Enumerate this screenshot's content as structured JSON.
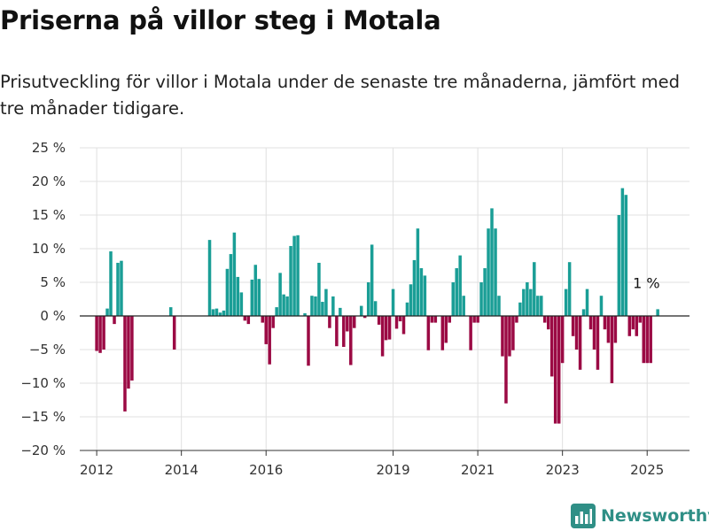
{
  "title": "Priserna på villor steg i Motala",
  "subtitle": "Prisutveckling för villor i Motala under de senaste tre månaderna, jämfört med tre månader tidigare.",
  "brand": {
    "name": "Newsworthy",
    "color": "#2f8f86"
  },
  "colors": {
    "positive": "#1a9e96",
    "negative": "#9b0a44",
    "grid": "#e0e0e0",
    "zero": "#222222"
  },
  "chart_data": {
    "type": "bar",
    "ylim": [
      -20,
      25
    ],
    "xlim": [
      2011.6,
      2026.0
    ],
    "y_ticks": [
      -20,
      -15,
      -10,
      -5,
      0,
      5,
      10,
      15,
      20,
      25
    ],
    "y_tick_labels": [
      "−20 %",
      "−15 %",
      "−10 %",
      "−5 %",
      "0 %",
      "5 %",
      "10 %",
      "15 %",
      "20 %",
      "25 %"
    ],
    "x_ticks": [
      2012,
      2014,
      2016,
      2019,
      2021,
      2023,
      2025
    ],
    "x_tick_labels": [
      "2012",
      "2014",
      "2016",
      "2019",
      "2021",
      "2023",
      "2025"
    ],
    "grid": true,
    "annotation": {
      "text": "1 %",
      "x": 2025.25,
      "y": 1
    },
    "points": [
      {
        "x": 2012.0,
        "y": -5.2
      },
      {
        "x": 2012.083,
        "y": -5.5
      },
      {
        "x": 2012.167,
        "y": -5.0
      },
      {
        "x": 2012.25,
        "y": 1.1
      },
      {
        "x": 2012.333,
        "y": 9.6
      },
      {
        "x": 2012.417,
        "y": -1.2
      },
      {
        "x": 2012.5,
        "y": 7.9
      },
      {
        "x": 2012.583,
        "y": 8.2
      },
      {
        "x": 2012.667,
        "y": -14.2
      },
      {
        "x": 2012.75,
        "y": -10.8
      },
      {
        "x": 2012.833,
        "y": -9.6
      },
      {
        "x": 2013.75,
        "y": 1.3
      },
      {
        "x": 2013.833,
        "y": -5.0
      },
      {
        "x": 2014.667,
        "y": 11.3
      },
      {
        "x": 2014.75,
        "y": 1.0
      },
      {
        "x": 2014.833,
        "y": 1.1
      },
      {
        "x": 2014.917,
        "y": 0.5
      },
      {
        "x": 2015.0,
        "y": 0.8
      },
      {
        "x": 2015.083,
        "y": 7.0
      },
      {
        "x": 2015.167,
        "y": 9.2
      },
      {
        "x": 2015.25,
        "y": 12.4
      },
      {
        "x": 2015.333,
        "y": 5.8
      },
      {
        "x": 2015.417,
        "y": 3.5
      },
      {
        "x": 2015.5,
        "y": -0.7
      },
      {
        "x": 2015.583,
        "y": -1.2
      },
      {
        "x": 2015.667,
        "y": 5.4
      },
      {
        "x": 2015.75,
        "y": 7.6
      },
      {
        "x": 2015.833,
        "y": 5.5
      },
      {
        "x": 2015.917,
        "y": -1.0
      },
      {
        "x": 2016.0,
        "y": -4.2
      },
      {
        "x": 2016.083,
        "y": -7.2
      },
      {
        "x": 2016.167,
        "y": -1.8
      },
      {
        "x": 2016.25,
        "y": 1.3
      },
      {
        "x": 2016.333,
        "y": 6.4
      },
      {
        "x": 2016.417,
        "y": 3.2
      },
      {
        "x": 2016.5,
        "y": 2.9
      },
      {
        "x": 2016.583,
        "y": 10.4
      },
      {
        "x": 2016.667,
        "y": 11.9
      },
      {
        "x": 2016.75,
        "y": 12.0
      },
      {
        "x": 2016.917,
        "y": 0.4
      },
      {
        "x": 2017.0,
        "y": -7.4
      },
      {
        "x": 2017.083,
        "y": 3.0
      },
      {
        "x": 2017.167,
        "y": 2.9
      },
      {
        "x": 2017.25,
        "y": 7.9
      },
      {
        "x": 2017.333,
        "y": 2.1
      },
      {
        "x": 2017.417,
        "y": 4.0
      },
      {
        "x": 2017.5,
        "y": -1.8
      },
      {
        "x": 2017.583,
        "y": 2.9
      },
      {
        "x": 2017.667,
        "y": -4.5
      },
      {
        "x": 2017.75,
        "y": 1.2
      },
      {
        "x": 2017.833,
        "y": -4.6
      },
      {
        "x": 2017.917,
        "y": -2.3
      },
      {
        "x": 2018.0,
        "y": -7.3
      },
      {
        "x": 2018.083,
        "y": -1.8
      },
      {
        "x": 2018.25,
        "y": 1.5
      },
      {
        "x": 2018.333,
        "y": -0.3
      },
      {
        "x": 2018.417,
        "y": 5.0
      },
      {
        "x": 2018.5,
        "y": 10.6
      },
      {
        "x": 2018.583,
        "y": 2.2
      },
      {
        "x": 2018.667,
        "y": -1.3
      },
      {
        "x": 2018.75,
        "y": -6.0
      },
      {
        "x": 2018.833,
        "y": -3.6
      },
      {
        "x": 2018.917,
        "y": -3.5
      },
      {
        "x": 2019.0,
        "y": 4.0
      },
      {
        "x": 2019.083,
        "y": -1.9
      },
      {
        "x": 2019.167,
        "y": -0.8
      },
      {
        "x": 2019.25,
        "y": -2.7
      },
      {
        "x": 2019.333,
        "y": 2.0
      },
      {
        "x": 2019.417,
        "y": 4.7
      },
      {
        "x": 2019.5,
        "y": 8.3
      },
      {
        "x": 2019.583,
        "y": 13.0
      },
      {
        "x": 2019.667,
        "y": 7.1
      },
      {
        "x": 2019.75,
        "y": 6.0
      },
      {
        "x": 2019.833,
        "y": -5.1
      },
      {
        "x": 2019.917,
        "y": -1.0
      },
      {
        "x": 2020.0,
        "y": -1.0
      },
      {
        "x": 2020.167,
        "y": -5.1
      },
      {
        "x": 2020.25,
        "y": -4.0
      },
      {
        "x": 2020.333,
        "y": -1.0
      },
      {
        "x": 2020.417,
        "y": 5.0
      },
      {
        "x": 2020.5,
        "y": 7.1
      },
      {
        "x": 2020.583,
        "y": 9.0
      },
      {
        "x": 2020.667,
        "y": 3.0
      },
      {
        "x": 2020.833,
        "y": -5.1
      },
      {
        "x": 2020.917,
        "y": -1.0
      },
      {
        "x": 2021.0,
        "y": -1.0
      },
      {
        "x": 2021.083,
        "y": 5.0
      },
      {
        "x": 2021.167,
        "y": 7.1
      },
      {
        "x": 2021.25,
        "y": 13.0
      },
      {
        "x": 2021.333,
        "y": 16.0
      },
      {
        "x": 2021.417,
        "y": 13.0
      },
      {
        "x": 2021.5,
        "y": 3.0
      },
      {
        "x": 2021.583,
        "y": -6.0
      },
      {
        "x": 2021.667,
        "y": -13.0
      },
      {
        "x": 2021.75,
        "y": -6.0
      },
      {
        "x": 2021.833,
        "y": -5.1
      },
      {
        "x": 2021.917,
        "y": -1.0
      },
      {
        "x": 2022.0,
        "y": 2.0
      },
      {
        "x": 2022.083,
        "y": 4.0
      },
      {
        "x": 2022.167,
        "y": 5.0
      },
      {
        "x": 2022.25,
        "y": 4.0
      },
      {
        "x": 2022.333,
        "y": 8.0
      },
      {
        "x": 2022.417,
        "y": 3.0
      },
      {
        "x": 2022.5,
        "y": 3.0
      },
      {
        "x": 2022.583,
        "y": -1.0
      },
      {
        "x": 2022.667,
        "y": -2.0
      },
      {
        "x": 2022.75,
        "y": -9.0
      },
      {
        "x": 2022.833,
        "y": -16.0
      },
      {
        "x": 2022.917,
        "y": -16.0
      },
      {
        "x": 2023.0,
        "y": -7.0
      },
      {
        "x": 2023.083,
        "y": 4.0
      },
      {
        "x": 2023.167,
        "y": 8.0
      },
      {
        "x": 2023.25,
        "y": -3.0
      },
      {
        "x": 2023.333,
        "y": -5.0
      },
      {
        "x": 2023.417,
        "y": -8.0
      },
      {
        "x": 2023.5,
        "y": 1.0
      },
      {
        "x": 2023.583,
        "y": 4.0
      },
      {
        "x": 2023.667,
        "y": -2.0
      },
      {
        "x": 2023.75,
        "y": -5.0
      },
      {
        "x": 2023.833,
        "y": -8.0
      },
      {
        "x": 2023.917,
        "y": 3.0
      },
      {
        "x": 2024.0,
        "y": -2.0
      },
      {
        "x": 2024.083,
        "y": -4.0
      },
      {
        "x": 2024.167,
        "y": -10.0
      },
      {
        "x": 2024.25,
        "y": -4.0
      },
      {
        "x": 2024.333,
        "y": 15.0
      },
      {
        "x": 2024.417,
        "y": 19.0
      },
      {
        "x": 2024.5,
        "y": 18.0
      },
      {
        "x": 2024.583,
        "y": -3.0
      },
      {
        "x": 2024.667,
        "y": -2.0
      },
      {
        "x": 2024.75,
        "y": -3.0
      },
      {
        "x": 2024.833,
        "y": -1.0
      },
      {
        "x": 2024.917,
        "y": -7.0
      },
      {
        "x": 2025.0,
        "y": -7.0
      },
      {
        "x": 2025.083,
        "y": -7.0
      },
      {
        "x": 2025.25,
        "y": 1.0
      }
    ]
  }
}
